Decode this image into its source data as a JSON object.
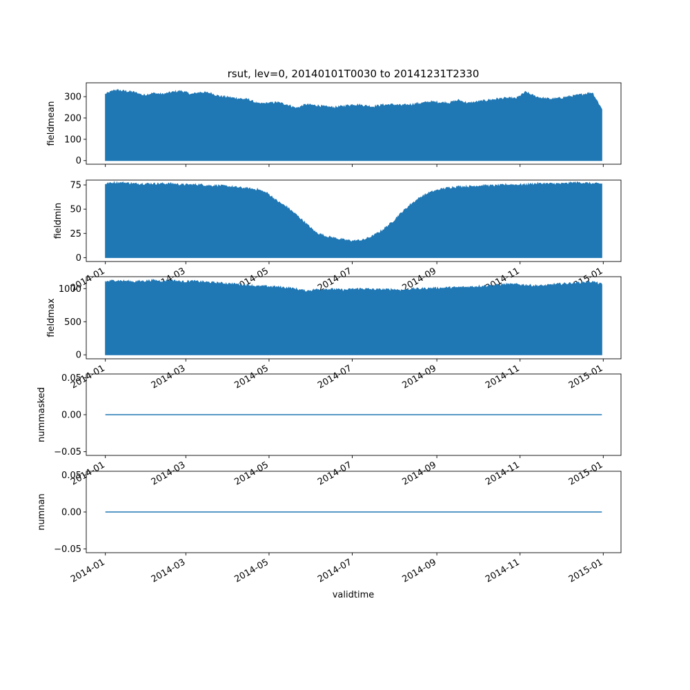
{
  "chart_data": [
    {
      "type": "area",
      "title": "rsut, lev=0, 20140101T0030 to 20141231T2330",
      "ylabel": "fieldmean",
      "xlabel": "",
      "xlim": [
        "2013-12-18",
        "2015-01-14"
      ],
      "ylim": [
        -17,
        365
      ],
      "yticks": [
        0,
        100,
        200,
        300
      ],
      "yticklabels": [
        "0",
        "100",
        "200",
        "300"
      ],
      "xticks": [
        "2014-01",
        "2014-03",
        "2014-05",
        "2014-07",
        "2014-09",
        "2014-11",
        "2015-01"
      ],
      "color": "#1f77b4",
      "x": [
        "2014-01-01",
        "2014-01-08",
        "2014-01-15",
        "2014-01-22",
        "2014-01-29",
        "2014-02-05",
        "2014-02-12",
        "2014-02-19",
        "2014-02-26",
        "2014-03-05",
        "2014-03-12",
        "2014-03-19",
        "2014-03-26",
        "2014-04-02",
        "2014-04-09",
        "2014-04-16",
        "2014-04-23",
        "2014-04-30",
        "2014-05-07",
        "2014-05-14",
        "2014-05-21",
        "2014-05-28",
        "2014-06-04",
        "2014-06-11",
        "2014-06-18",
        "2014-06-25",
        "2014-07-02",
        "2014-07-09",
        "2014-07-16",
        "2014-07-23",
        "2014-07-30",
        "2014-08-06",
        "2014-08-13",
        "2014-08-20",
        "2014-08-27",
        "2014-09-03",
        "2014-09-10",
        "2014-09-17",
        "2014-09-24",
        "2014-10-01",
        "2014-10-08",
        "2014-10-15",
        "2014-10-22",
        "2014-10-29",
        "2014-11-05",
        "2014-11-12",
        "2014-11-19",
        "2014-11-26",
        "2014-12-03",
        "2014-12-10",
        "2014-12-17",
        "2014-12-24",
        "2014-12-31"
      ],
      "series": [
        {
          "values": [
            310,
            330,
            325,
            320,
            305,
            315,
            310,
            320,
            325,
            310,
            320,
            315,
            300,
            295,
            290,
            285,
            265,
            268,
            272,
            262,
            245,
            262,
            258,
            252,
            248,
            255,
            262,
            258,
            252,
            260,
            262,
            258,
            262,
            268,
            275,
            272,
            270,
            282,
            268,
            275,
            282,
            288,
            292,
            290,
            320,
            300,
            290,
            288,
            295,
            302,
            310,
            318,
            240
          ]
        }
      ],
      "min": 0
    },
    {
      "type": "area",
      "ylabel": "fieldmin",
      "ylim": [
        -4,
        80
      ],
      "yticks": [
        0,
        25,
        50,
        75
      ],
      "yticklabels": [
        "0",
        "25",
        "50",
        "75"
      ],
      "xticks": [
        "2014-01",
        "2014-03",
        "2014-05",
        "2014-07",
        "2014-09",
        "2014-11",
        "2015-01"
      ],
      "xticklabels": [
        "2014-01",
        "2014-03",
        "2014-05",
        "2014-07",
        "2014-09",
        "2014-11",
        "2015-01"
      ],
      "color": "#1f77b4",
      "x": [
        "2014-01-01",
        "2014-01-08",
        "2014-01-15",
        "2014-01-22",
        "2014-01-29",
        "2014-02-05",
        "2014-02-12",
        "2014-02-19",
        "2014-02-26",
        "2014-03-05",
        "2014-03-12",
        "2014-03-19",
        "2014-03-26",
        "2014-04-02",
        "2014-04-09",
        "2014-04-16",
        "2014-04-23",
        "2014-04-30",
        "2014-05-07",
        "2014-05-14",
        "2014-05-21",
        "2014-05-28",
        "2014-06-04",
        "2014-06-11",
        "2014-06-18",
        "2014-06-25",
        "2014-07-02",
        "2014-07-09",
        "2014-07-16",
        "2014-07-23",
        "2014-07-30",
        "2014-08-06",
        "2014-08-13",
        "2014-08-20",
        "2014-08-27",
        "2014-09-03",
        "2014-09-10",
        "2014-09-17",
        "2014-09-24",
        "2014-10-01",
        "2014-10-08",
        "2014-10-15",
        "2014-10-22",
        "2014-10-29",
        "2014-11-05",
        "2014-11-12",
        "2014-11-19",
        "2014-11-26",
        "2014-12-03",
        "2014-12-10",
        "2014-12-17",
        "2014-12-24",
        "2014-12-31"
      ],
      "series": [
        {
          "values": [
            76,
            77,
            77,
            76,
            76,
            76,
            76,
            76,
            75,
            75,
            75,
            74,
            74,
            73,
            72,
            71,
            70,
            66,
            58,
            52,
            44,
            35,
            26,
            22,
            20,
            18,
            17,
            18,
            22,
            28,
            36,
            46,
            55,
            62,
            67,
            70,
            72,
            73,
            73,
            74,
            74,
            74,
            75,
            75,
            75,
            76,
            76,
            76,
            76,
            77,
            77,
            76,
            76
          ]
        }
      ],
      "min": 0
    },
    {
      "type": "area",
      "ylabel": "fieldmax",
      "ylim": [
        -60,
        1180
      ],
      "yticks": [
        0,
        500,
        1000
      ],
      "yticklabels": [
        "0",
        "500",
        "1000"
      ],
      "xticks": [
        "2014-01",
        "2014-03",
        "2014-05",
        "2014-07",
        "2014-09",
        "2014-11",
        "2015-01"
      ],
      "xticklabels": [
        "2014-01",
        "2014-03",
        "2014-05",
        "2014-07",
        "2014-09",
        "2014-11",
        "2015-01"
      ],
      "color": "#1f77b4",
      "x": [
        "2014-01-01",
        "2014-01-08",
        "2014-01-15",
        "2014-01-22",
        "2014-01-29",
        "2014-02-05",
        "2014-02-12",
        "2014-02-19",
        "2014-02-26",
        "2014-03-05",
        "2014-03-12",
        "2014-03-19",
        "2014-03-26",
        "2014-04-02",
        "2014-04-09",
        "2014-04-16",
        "2014-04-23",
        "2014-04-30",
        "2014-05-07",
        "2014-05-14",
        "2014-05-21",
        "2014-05-28",
        "2014-06-04",
        "2014-06-11",
        "2014-06-18",
        "2014-06-25",
        "2014-07-02",
        "2014-07-09",
        "2014-07-16",
        "2014-07-23",
        "2014-07-30",
        "2014-08-06",
        "2014-08-13",
        "2014-08-20",
        "2014-08-27",
        "2014-09-03",
        "2014-09-10",
        "2014-09-17",
        "2014-09-24",
        "2014-10-01",
        "2014-10-08",
        "2014-10-15",
        "2014-10-22",
        "2014-10-29",
        "2014-11-05",
        "2014-11-12",
        "2014-11-19",
        "2014-11-26",
        "2014-12-03",
        "2014-12-10",
        "2014-12-17",
        "2014-12-24",
        "2014-12-31"
      ],
      "series": [
        {
          "values": [
            1100,
            1120,
            1110,
            1100,
            1110,
            1120,
            1110,
            1120,
            1100,
            1110,
            1100,
            1090,
            1080,
            1070,
            1060,
            1050,
            1030,
            1030,
            1020,
            1010,
            990,
            960,
            980,
            990,
            985,
            975,
            990,
            995,
            985,
            980,
            985,
            975,
            990,
            995,
            1000,
            1005,
            1010,
            1015,
            1020,
            1030,
            1040,
            1050,
            1060,
            1060,
            1050,
            1040,
            1040,
            1060,
            1070,
            1080,
            1090,
            1100,
            1060
          ]
        }
      ],
      "min": 0
    },
    {
      "type": "line",
      "ylabel": "nummasked",
      "ylim": [
        -0.055,
        0.055
      ],
      "yticks": [
        -0.05,
        0.0,
        0.05
      ],
      "yticklabels": [
        "−0.05",
        "0.00",
        "0.05"
      ],
      "xticks": [
        "2014-01",
        "2014-03",
        "2014-05",
        "2014-07",
        "2014-09",
        "2014-11",
        "2015-01"
      ],
      "xticklabels": [
        "2014-01",
        "2014-03",
        "2014-05",
        "2014-07",
        "2014-09",
        "2014-11",
        "2015-01"
      ],
      "color": "#1f77b4",
      "x": [
        "2014-01-01",
        "2014-12-31"
      ],
      "series": [
        {
          "values": [
            0,
            0
          ]
        }
      ]
    },
    {
      "type": "line",
      "ylabel": "numnan",
      "xlabel": "validtime",
      "ylim": [
        -0.055,
        0.055
      ],
      "yticks": [
        -0.05,
        0.0,
        0.05
      ],
      "yticklabels": [
        "−0.05",
        "0.00",
        "0.05"
      ],
      "xticks": [
        "2014-01",
        "2014-03",
        "2014-05",
        "2014-07",
        "2014-09",
        "2014-11",
        "2015-01"
      ],
      "xticklabels": [
        "2014-01",
        "2014-03",
        "2014-05",
        "2014-07",
        "2014-09",
        "2014-11",
        "2015-01"
      ],
      "color": "#1f77b4",
      "x": [
        "2014-01-01",
        "2014-12-31"
      ],
      "series": [
        {
          "values": [
            0,
            0
          ]
        }
      ]
    }
  ]
}
